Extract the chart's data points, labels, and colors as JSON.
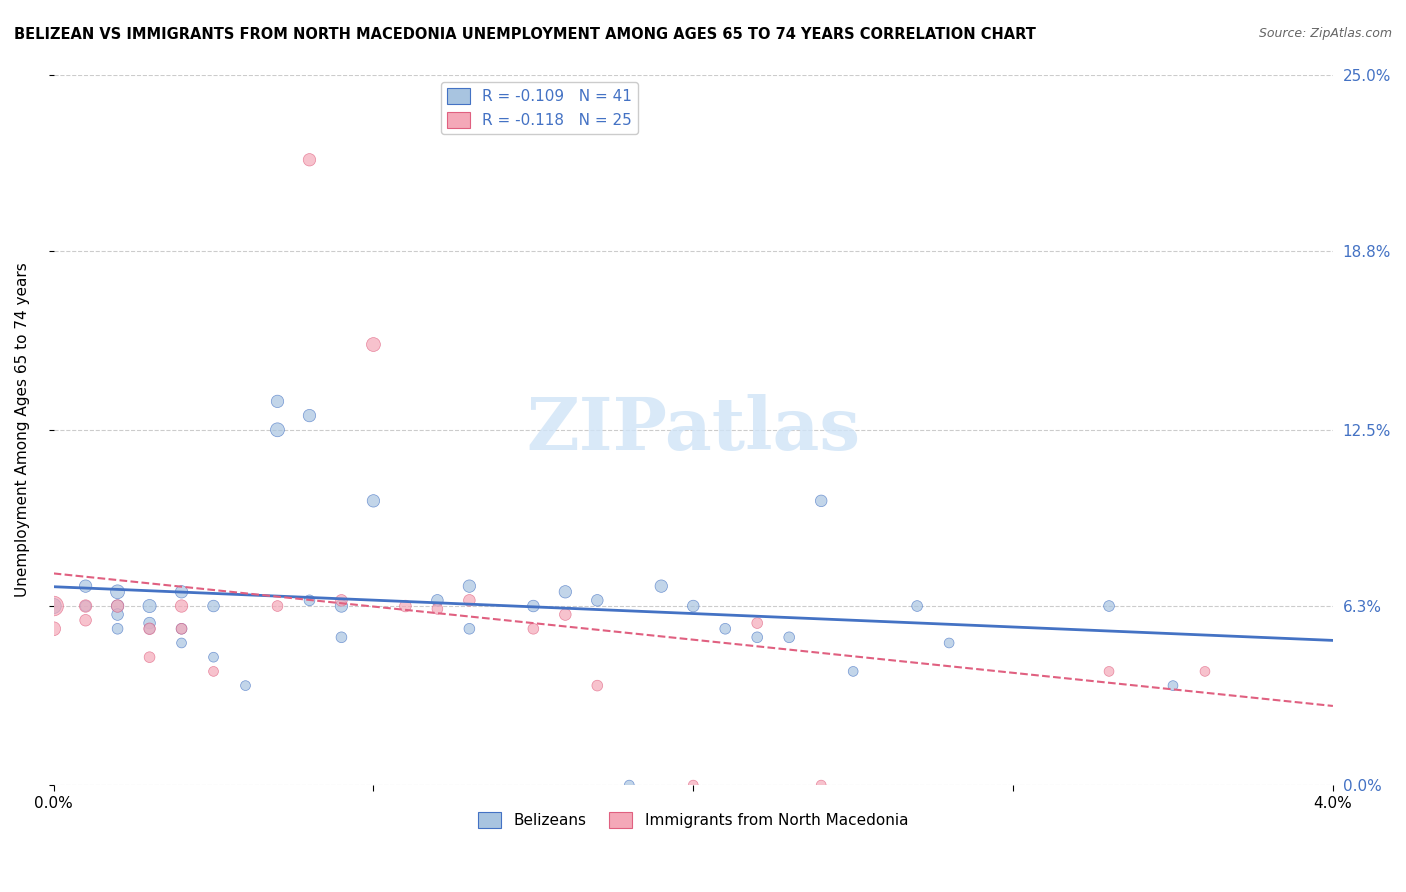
{
  "title": "BELIZEAN VS IMMIGRANTS FROM NORTH MACEDONIA UNEMPLOYMENT AMONG AGES 65 TO 74 YEARS CORRELATION CHART",
  "source": "Source: ZipAtlas.com",
  "xlabel": "",
  "ylabel": "Unemployment Among Ages 65 to 74 years",
  "xlim": [
    0.0,
    0.04
  ],
  "ylim": [
    0.0,
    0.25
  ],
  "yticks": [
    0.0,
    0.063,
    0.125,
    0.188,
    0.25
  ],
  "ytick_labels": [
    "0.0%",
    "6.3%",
    "12.5%",
    "18.8%",
    "25.0%"
  ],
  "xticks": [
    0.0,
    0.01,
    0.02,
    0.03,
    0.04
  ],
  "xtick_labels": [
    "0.0%",
    "",
    "",
    "",
    "4.0%"
  ],
  "belizean_R": -0.109,
  "belizean_N": 41,
  "macedonia_R": -0.118,
  "macedonia_N": 25,
  "belizean_color": "#a8c4e0",
  "macedonia_color": "#f4a8b8",
  "trend_belizean_color": "#4472c4",
  "trend_macedonia_color": "#e06080",
  "watermark": "ZIPatlas",
  "watermark_color": "#d0e4f7",
  "legend_color_blue": "#4472c4",
  "legend_color_pink": "#e06080",
  "belizean_x": [
    0.0,
    0.001,
    0.001,
    0.002,
    0.002,
    0.002,
    0.002,
    0.003,
    0.003,
    0.003,
    0.004,
    0.004,
    0.004,
    0.005,
    0.005,
    0.006,
    0.007,
    0.007,
    0.008,
    0.008,
    0.009,
    0.009,
    0.01,
    0.012,
    0.013,
    0.013,
    0.015,
    0.016,
    0.017,
    0.018,
    0.019,
    0.02,
    0.021,
    0.022,
    0.023,
    0.024,
    0.025,
    0.027,
    0.028,
    0.033,
    0.035
  ],
  "belizean_y": [
    0.063,
    0.07,
    0.063,
    0.068,
    0.063,
    0.06,
    0.055,
    0.063,
    0.057,
    0.055,
    0.068,
    0.055,
    0.05,
    0.063,
    0.045,
    0.035,
    0.125,
    0.135,
    0.13,
    0.065,
    0.063,
    0.052,
    0.1,
    0.065,
    0.07,
    0.055,
    0.063,
    0.068,
    0.065,
    0.0,
    0.07,
    0.063,
    0.055,
    0.052,
    0.052,
    0.1,
    0.04,
    0.063,
    0.05,
    0.063,
    0.035
  ],
  "belizean_size": [
    120,
    80,
    60,
    100,
    80,
    70,
    60,
    90,
    70,
    60,
    80,
    60,
    50,
    70,
    50,
    50,
    100,
    80,
    80,
    60,
    80,
    60,
    80,
    70,
    80,
    60,
    70,
    80,
    70,
    50,
    80,
    70,
    60,
    60,
    60,
    70,
    50,
    60,
    50,
    60,
    50
  ],
  "macedonia_x": [
    0.0,
    0.0,
    0.001,
    0.001,
    0.002,
    0.003,
    0.003,
    0.004,
    0.004,
    0.005,
    0.007,
    0.008,
    0.009,
    0.01,
    0.011,
    0.012,
    0.013,
    0.015,
    0.016,
    0.017,
    0.02,
    0.022,
    0.024,
    0.033,
    0.036
  ],
  "macedonia_y": [
    0.063,
    0.055,
    0.063,
    0.058,
    0.063,
    0.055,
    0.045,
    0.063,
    0.055,
    0.04,
    0.063,
    0.22,
    0.065,
    0.155,
    0.063,
    0.062,
    0.065,
    0.055,
    0.06,
    0.035,
    0.0,
    0.057,
    0.0,
    0.04,
    0.04
  ],
  "macedonia_size": [
    200,
    100,
    80,
    70,
    80,
    70,
    60,
    80,
    60,
    50,
    60,
    80,
    70,
    100,
    70,
    60,
    70,
    60,
    70,
    60,
    50,
    60,
    50,
    50,
    50
  ]
}
